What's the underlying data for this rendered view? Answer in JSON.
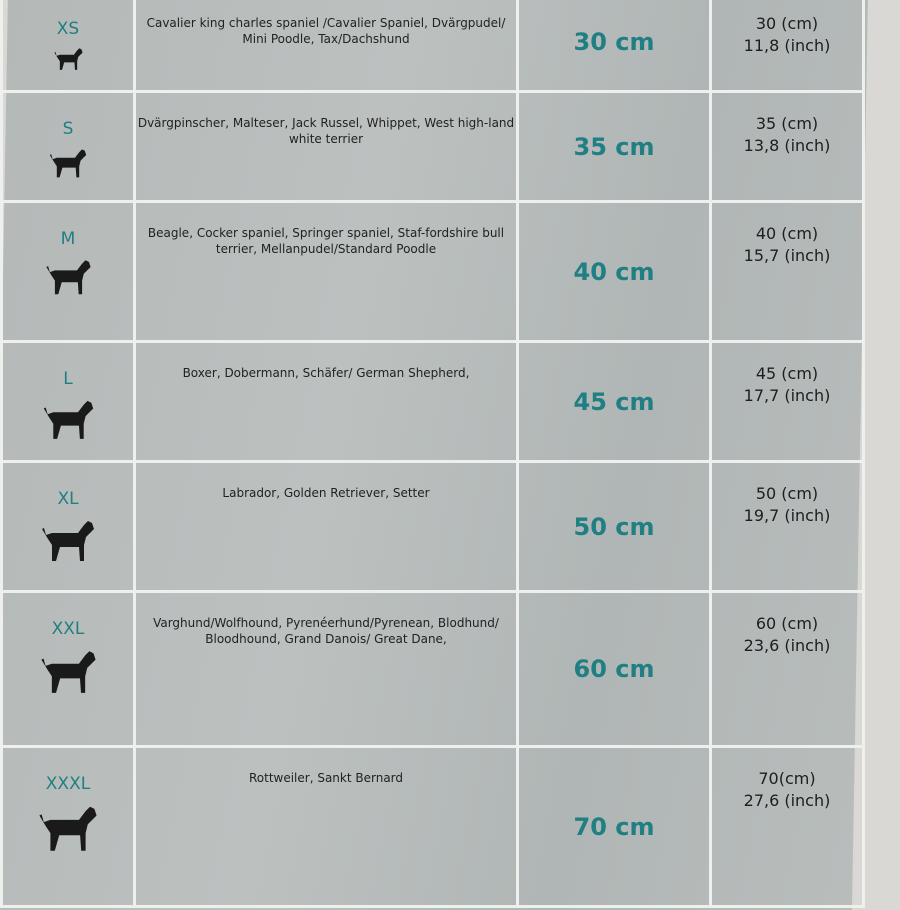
{
  "colors": {
    "accent": "#1f7f82",
    "text": "#1e1e1e",
    "grid": "#eef0ee"
  },
  "rows": [
    {
      "size": "XS",
      "breeds": "Cavalier king charles spaniel /Cavalier Spaniel, Dvärgpudel/ Mini Poodle, Tax/Dachshund",
      "length": "30 cm",
      "cm": "30 (cm)",
      "inch": "11,8 (inch)",
      "icon": "dachshund-icon"
    },
    {
      "size": "S",
      "breeds": "Dvärgpinscher, Malteser, Jack Russel, Whippet, West high-land white terrier",
      "length": "35 cm",
      "cm": "35 (cm)",
      "inch": "13,8 (inch)",
      "icon": "small-dog-icon"
    },
    {
      "size": "M",
      "breeds": "Beagle, Cocker spaniel, Springer spaniel, Staf-fordshire bull terrier, Mellanpudel/Standard Poodle",
      "length": "40 cm",
      "cm": "40 (cm)",
      "inch": "15,7 (inch)",
      "icon": "medium-dog-icon"
    },
    {
      "size": "L",
      "breeds": "Boxer, Dobermann, Schäfer/ German Shepherd,",
      "length": "45 cm",
      "cm": "45 (cm)",
      "inch": "17,7 (inch)",
      "icon": "doberman-icon"
    },
    {
      "size": "XL",
      "breeds": "Labrador, Golden Retriever, Setter",
      "length": "50 cm",
      "cm": "50 (cm)",
      "inch": "19,7 (inch)",
      "icon": "labrador-icon"
    },
    {
      "size": "XXL",
      "breeds": "Varghund/Wolfhound, Pyrenéerhund/Pyrenean, Blodhund/ Bloodhound, Grand Danois/ Great Dane,",
      "length": "60 cm",
      "cm": "60 (cm)",
      "inch": "23,6 (inch)",
      "icon": "great-dane-icon"
    },
    {
      "size": "XXXL",
      "breeds": "Rottweiler, Sankt Bernard",
      "length": "70 cm",
      "cm": "70(cm)",
      "inch": "27,6 (inch)",
      "icon": "st-bernard-icon"
    }
  ]
}
